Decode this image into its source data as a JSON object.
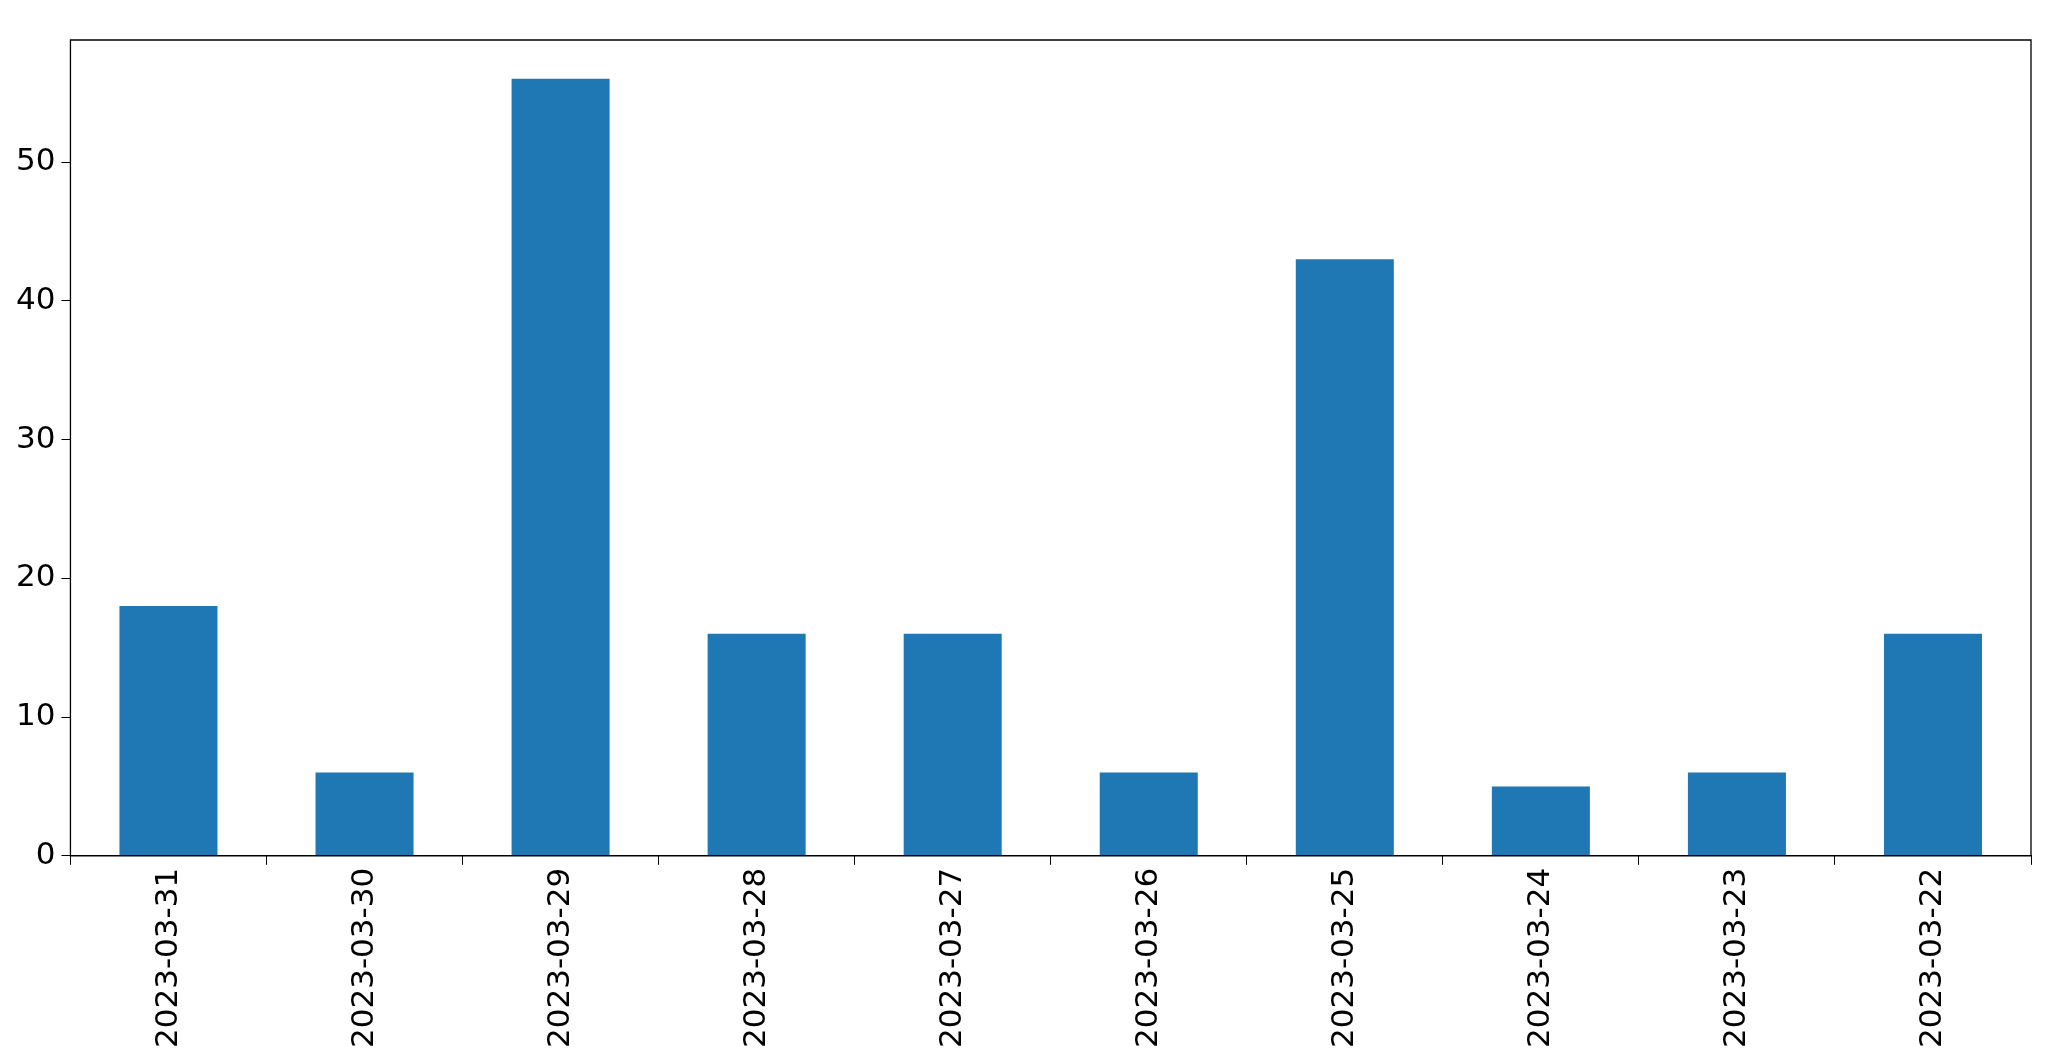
{
  "chart_data": {
    "type": "bar",
    "categories": [
      "2023-03-31",
      "2023-03-30",
      "2023-03-29",
      "2023-03-28",
      "2023-03-27",
      "2023-03-26",
      "2023-03-25",
      "2023-03-24",
      "2023-03-23",
      "2023-03-22"
    ],
    "values": [
      18,
      6,
      56,
      16,
      16,
      6,
      43,
      5,
      6,
      16
    ],
    "color": "#1f77b4",
    "ylim": [
      0,
      58.8
    ],
    "yticks": [
      0,
      10,
      20,
      30,
      40,
      50
    ],
    "grid": false,
    "legend": false
  }
}
